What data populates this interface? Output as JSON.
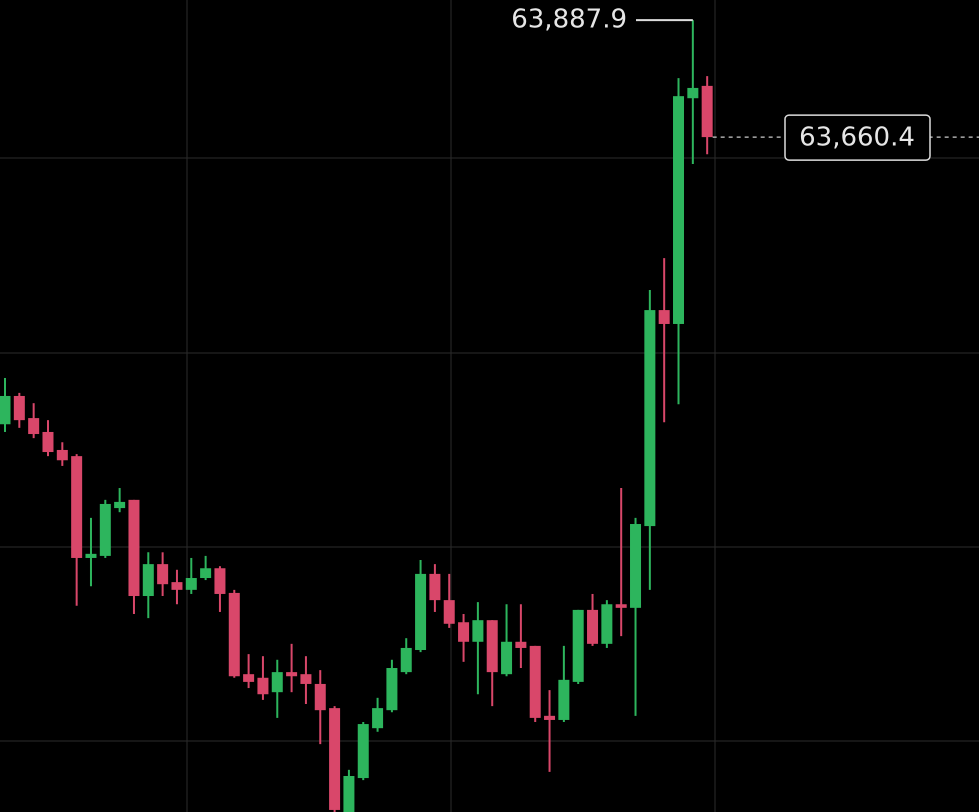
{
  "chart_data": {
    "type": "candlestick",
    "up_color": "#2db55d",
    "down_color": "#d9476a",
    "ylim": [
      62348,
      63927
    ],
    "open": [
      63102,
      63157,
      63114,
      63087,
      63052,
      63040,
      62842,
      62846,
      62939,
      62955,
      62768,
      62830,
      62795,
      62780,
      62803,
      62822,
      62774,
      62616,
      62609,
      62581,
      62620,
      62616,
      62597,
      62550,
      62348,
      62414,
      62511,
      62546,
      62620,
      62663,
      62811,
      62760,
      62717,
      62679,
      62721,
      62616,
      62679,
      62671,
      62535,
      62527,
      62601,
      62741,
      62675,
      62752,
      62745,
      62904,
      63324,
      63297,
      63736,
      63760
    ],
    "high": [
      63192,
      63163,
      63143,
      63110,
      63067,
      63044,
      62920,
      62955,
      62978,
      62955,
      62853,
      62853,
      62819,
      62842,
      62846,
      62826,
      62780,
      62655,
      62651,
      62644,
      62675,
      62651,
      62624,
      62554,
      62430,
      62523,
      62570,
      62644,
      62686,
      62838,
      62830,
      62811,
      62733,
      62756,
      62721,
      62752,
      62752,
      62671,
      62585,
      62671,
      62741,
      62772,
      62760,
      62978,
      62920,
      63363,
      63425,
      63775,
      63887.9,
      63779
    ],
    "low": [
      63087,
      63095,
      63075,
      63040,
      63021,
      62749,
      62787,
      62842,
      62931,
      62733,
      62725,
      62768,
      62752,
      62772,
      62799,
      62737,
      62609,
      62589,
      62566,
      62531,
      62581,
      62558,
      62480,
      62348,
      62348,
      62410,
      62504,
      62542,
      62616,
      62659,
      62737,
      62706,
      62640,
      62577,
      62554,
      62612,
      62628,
      62523,
      62426,
      62523,
      62597,
      62671,
      62667,
      62690,
      62535,
      62780,
      63106,
      63141,
      63608,
      63627
    ],
    "close": [
      63157,
      63110,
      63083,
      63048,
      63032,
      62842,
      62850,
      62947,
      62951,
      62768,
      62830,
      62791,
      62780,
      62803,
      62822,
      62772,
      62612,
      62601,
      62577,
      62620,
      62612,
      62597,
      62546,
      62352,
      62418,
      62519,
      62550,
      62628,
      62667,
      62811,
      62760,
      62714,
      62679,
      62721,
      62620,
      62679,
      62667,
      62531,
      62527,
      62605,
      62741,
      62675,
      62752,
      62745,
      62908,
      63324,
      63297,
      63740,
      63756,
      63660.4
    ],
    "high_marker": {
      "value": 63887.9,
      "label": "63,887.9"
    },
    "last_price": {
      "value": 63660.4,
      "label": "63,660.4"
    }
  }
}
